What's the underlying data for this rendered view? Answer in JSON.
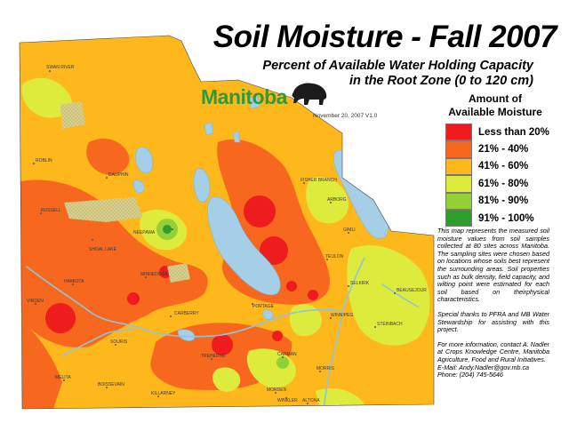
{
  "title": "Soil Moisture - Fall 2007",
  "subtitle_line1": "Percent of Available Water Holding Capacity",
  "subtitle_line2": "in the Root Zone (0 to 120 cm)",
  "logo_text": "Manitoba",
  "date_text": "November 20, 2007   V1.0",
  "legend": {
    "title_line1": "Amount of",
    "title_line2": "Available Moisture",
    "items": [
      {
        "label": "Less than 20%",
        "color": "#ee1c1c"
      },
      {
        "label": "21% - 40%",
        "color": "#f7681e"
      },
      {
        "label": "41% - 60%",
        "color": "#ffb81c"
      },
      {
        "label": "61% - 80%",
        "color": "#ddec3c"
      },
      {
        "label": "81% - 90%",
        "color": "#92d036"
      },
      {
        "label": "91% - 100%",
        "color": "#2e9e2c"
      }
    ]
  },
  "description": "This map represents the measured soil moisture values from soil samples collected at 80 sites across Manitoba. The sampling sites were chosen based on locations whose soils best represent the surrounding areas. Soil properties such as bulk density, field capacity, and wilting point were estimated for each soil based on theirphysical characteristics.",
  "thanks": "Special thanks to PFRA and MB Water Stewardship for assisting with this project.",
  "contact_line1": "For more information, contact A. Nadler at Crops Knowledge Centre, Manitoba Agriculture, Food and Rural Initiatives.",
  "contact_line2": "E-Mail: Andy.Nadler@gov.mb.ca",
  "contact_line3": "Phone: (204) 745-5646",
  "colors": {
    "lake": "#a4cfe6",
    "river": "#8ec4df",
    "background": "#ffffff"
  },
  "towns": {
    "swan_river": "SWAN RIVER",
    "roblin": "ROBLIN",
    "dauphin": "DAUPHIN",
    "russell": "RUSSELL",
    "neepawa": "NEEPAWA",
    "shoal_lake": "SHOAL LAKE",
    "minnedosa": "MINNEDOSA",
    "hamiota": "HAMIOTA",
    "virden": "VIRDEN",
    "carberry": "CARBERRY",
    "portage": "PORTAGE",
    "souris": "SOURIS",
    "boissevain": "BOISSEVAIN",
    "killarney": "KILLARNEY",
    "melita": "MELITA",
    "carman": "CARMAN",
    "morden": "MORDEN",
    "winkler": "WINKLER",
    "morris": "MORRIS",
    "altona": "ALTONA",
    "winnipeg": "WINNIPEG",
    "selkirk": "SELKIRK",
    "beausejour": "BEAUSEJOUR",
    "steinbach": "STEINBACH",
    "teulon": "TEULON",
    "gimli": "GIMLI",
    "arborg": "ARBORG",
    "fisher_branch": "FISHER BRANCH",
    "treherne": "TREHERNE"
  }
}
